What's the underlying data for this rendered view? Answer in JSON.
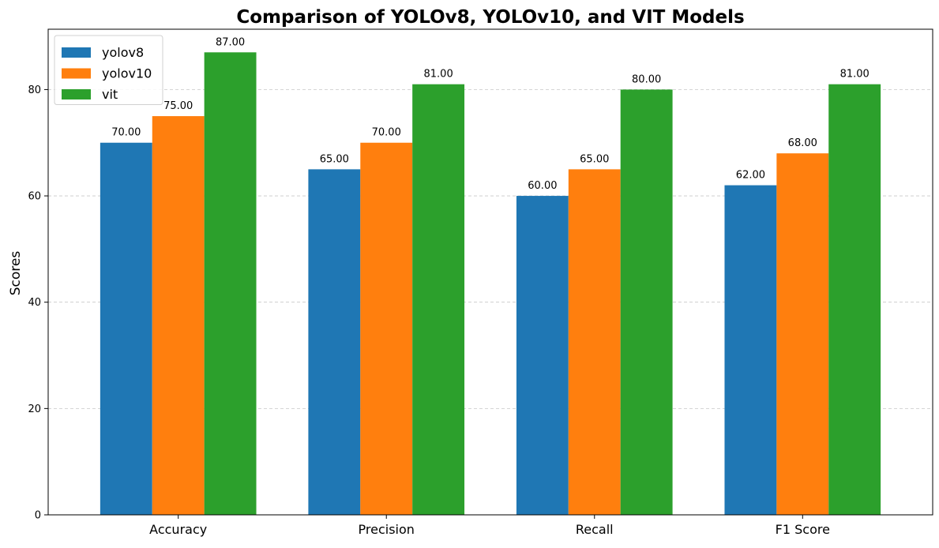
{
  "chart_data": {
    "type": "bar",
    "title": "Comparison of YOLOv8, YOLOv10, and VIT Models",
    "xlabel": "",
    "ylabel": "Scores",
    "categories": [
      "Accuracy",
      "Precision",
      "Recall",
      "F1 Score"
    ],
    "series": [
      {
        "name": "yolov8",
        "values": [
          70,
          65,
          60,
          62
        ],
        "color": "#1f77b4"
      },
      {
        "name": "yolov10",
        "values": [
          75,
          70,
          65,
          68
        ],
        "color": "#ff7f0e"
      },
      {
        "name": "vit",
        "values": [
          87,
          81,
          80,
          81
        ],
        "color": "#2ca02c"
      }
    ],
    "ylim": [
      0,
      91.35
    ],
    "yticks": [
      0,
      20,
      40,
      60,
      80
    ],
    "grid": "y-dashed",
    "legend_position": "top-left",
    "data_label_format": "2-decimals"
  }
}
